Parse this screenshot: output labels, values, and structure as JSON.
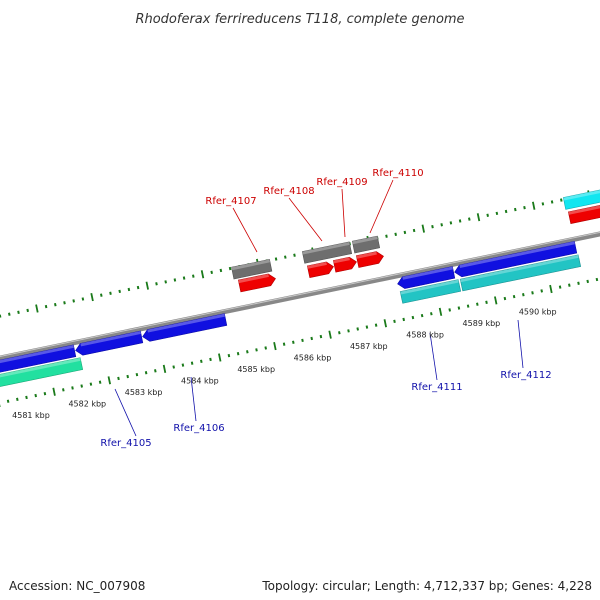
{
  "title": "Rhodoferax ferrireducens T118, complete genome",
  "footer": {
    "accession": "Accession: NC_007908",
    "summary": "Topology: circular; Length: 4,712,337 bp; Genes: 4,228"
  },
  "colors": {
    "backbone": "#888888",
    "tick": "#1a7a1a",
    "forward_gene": "#ee0000",
    "forward_other": "#6e6e6e",
    "reverse_gene": "#1010e0",
    "reverse_cds": "#22c4c4",
    "reverse_cds_alt": "#22e0a0",
    "forward_cds_right": "#11e6f0",
    "label_forward": "#cc0000",
    "label_reverse": "#1010aa"
  },
  "scale": {
    "unit": "kbp",
    "labels": [
      "4581 kbp",
      "4582 kbp",
      "4583 kbp",
      "4584 kbp",
      "4585 kbp",
      "4586 kbp",
      "4587 kbp",
      "4588 kbp",
      "4589 kbp",
      "4590 kbp"
    ]
  },
  "genes": {
    "forward": [
      "Rfer_4107",
      "Rfer_4108",
      "Rfer_4109",
      "Rfer_4110"
    ],
    "reverse": [
      "Rfer_4105",
      "Rfer_4106",
      "Rfer_4111",
      "Rfer_4112"
    ]
  }
}
